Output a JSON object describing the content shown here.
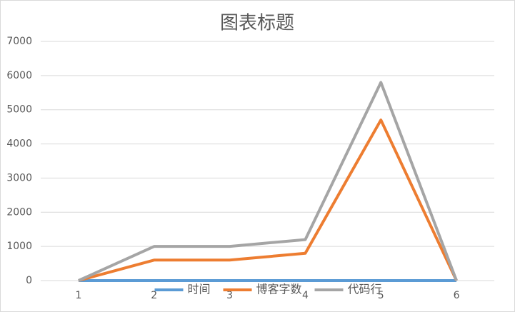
{
  "chart_data": {
    "type": "line",
    "title": "图表标题",
    "categories": [
      "1",
      "2",
      "3",
      "4",
      "5",
      "6"
    ],
    "series": [
      {
        "name": "时间",
        "color": "#5b9bd5",
        "values": [
          0,
          0,
          0,
          0,
          0,
          0
        ]
      },
      {
        "name": "博客字数",
        "color": "#ed7d31",
        "values": [
          0,
          600,
          600,
          800,
          4700,
          0
        ]
      },
      {
        "name": "代码行",
        "color": "#a5a5a5",
        "values": [
          0,
          1000,
          1000,
          1200,
          5800,
          0
        ]
      }
    ],
    "ylim": [
      0,
      7000
    ],
    "yticks": [
      0,
      1000,
      2000,
      3000,
      4000,
      5000,
      6000,
      7000
    ],
    "grid": true,
    "legend": "bottom"
  }
}
